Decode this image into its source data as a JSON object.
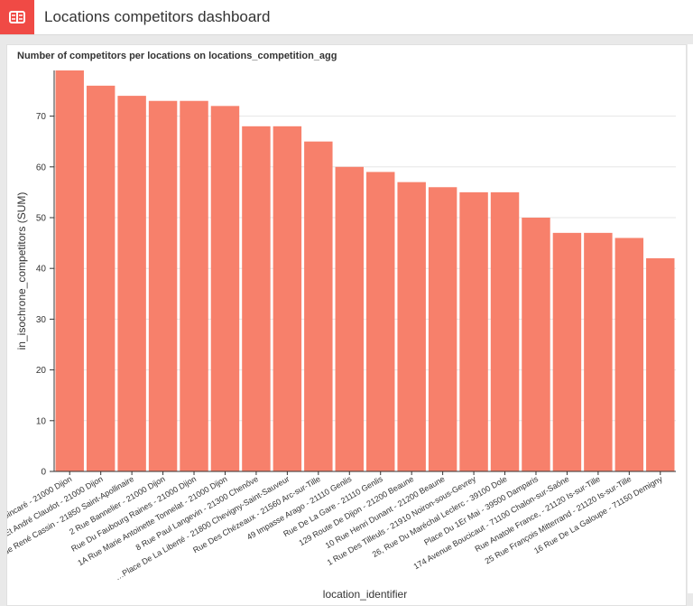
{
  "header": {
    "title": "Locations competitors dashboard",
    "app_icon": "dashboard-icon"
  },
  "colors": {
    "accent": "#f04a45",
    "bar": "#f7806b",
    "grid": "#e6e6e6"
  },
  "chart_data": {
    "type": "bar",
    "title": "Number of competitors per locations on locations_competition_agg",
    "xlabel": "location_identifier",
    "ylabel": "in_isochrone_competitors (SUM)",
    "ylim": [
      0,
      79
    ],
    "yticks": [
      0,
      10,
      20,
      30,
      40,
      50,
      60,
      70
    ],
    "grid": true,
    "categories": [
      "…oincaré - 21000 Dijon",
      "…Et André Claudot - 21000 Dijon",
      "Rue René Cassin - 21850 Saint-Apollinaire",
      "2 Rue Bannelier - 21000 Dijon",
      "Rue Du Faubourg Raines - 21000 Dijon",
      "1A Rue Marie Antoinette Tonnelat - 21000 Dijon",
      "8 Rue Paul Langevin - 21300 Chenôve",
      "…Place De La Liberté - 21800 Chevigny-Saint-Sauveur",
      "Rue Des Chézeaux - 21560 Arc-sur-Tille",
      "49 Impasse Arago - 21110 Genlis",
      "Rue De La Gare - 21110 Genlis",
      "129 Route De Dijon - 21200 Beaune",
      "10 Rue Henri Dunant - 21200 Beaune",
      "1 Rue Des Tilleuls - 21910 Noiron-sous-Gevrey",
      "26, Rue Du Maréchal Leclerc - 39100 Dole",
      "Place Du 1Er Mai - 39500 Damparis",
      "174 Avenue Boucicaut - 71100 Chalon-sur-Saône",
      "Rue Anatole France, - 21120 Is-sur-Tille",
      "25 Rue François Mitterrand - 21120 Is-sur-Tille",
      "16 Rue De La Galoupe - 71150 Demigny"
    ],
    "values": [
      79,
      76,
      74,
      73,
      73,
      72,
      68,
      68,
      65,
      60,
      59,
      57,
      56,
      55,
      55,
      50,
      47,
      47,
      46,
      42
    ]
  }
}
